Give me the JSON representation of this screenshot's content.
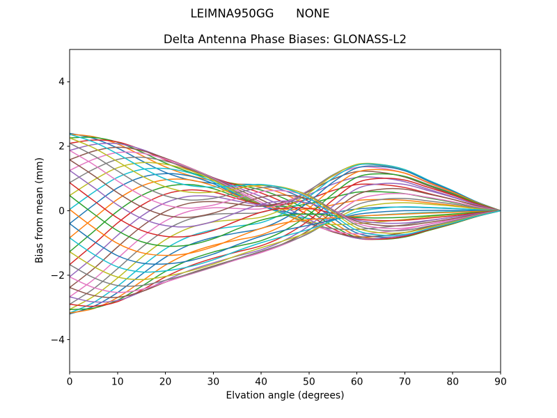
{
  "chart_data": {
    "type": "line",
    "suptitle": "LEIMNA950GG      NONE",
    "title": "Delta Antenna Phase Biases: GLONASS-L2",
    "xlabel": "Elvation angle (degrees)",
    "ylabel": "Bias from mean (mm)",
    "xlim": [
      0,
      90
    ],
    "ylim": [
      -5,
      5
    ],
    "xticks": [
      0,
      10,
      20,
      30,
      40,
      50,
      60,
      70,
      80,
      90
    ],
    "yticks": [
      -4,
      -2,
      0,
      2,
      4
    ],
    "grid": false,
    "legend": "none",
    "background": "#ffffff",
    "axis_color": "#000000",
    "palette": [
      "#1f77b4",
      "#ff7f0e",
      "#2ca02c",
      "#d62728",
      "#9467bd",
      "#8c564b",
      "#e377c2",
      "#7f7f7f",
      "#bcbd22",
      "#17becf"
    ],
    "x": [
      0,
      5,
      10,
      15,
      20,
      25,
      30,
      35,
      40,
      45,
      50,
      55,
      60,
      65,
      70,
      75,
      80,
      85,
      90
    ],
    "basis": {
      "p": [
        1.0,
        0.93,
        0.8,
        0.63,
        0.47,
        0.36,
        0.3,
        0.27,
        0.24,
        0.15,
        0.0,
        -0.2,
        -0.36,
        -0.39,
        -0.36,
        -0.27,
        -0.18,
        -0.08,
        0.0
      ],
      "q": [
        0.0,
        0.4,
        0.75,
        0.95,
        1.0,
        0.94,
        0.78,
        0.55,
        0.34,
        0.2,
        0.12,
        0.08,
        0.06,
        0.05,
        0.04,
        0.03,
        0.02,
        0.01,
        0.0
      ],
      "r": [
        0.0,
        0.04,
        0.08,
        0.14,
        0.22,
        0.33,
        0.47,
        0.63,
        0.78,
        0.92,
        1.0,
        0.88,
        0.62,
        0.44,
        0.31,
        0.2,
        0.12,
        0.05,
        0.0
      ]
    },
    "series_rule": "y[k] = a*p[k] + b*q[k] + c*r[k] (mm); all curves equal 0 at 90 degrees",
    "series": [
      {
        "a": 2.4,
        "b": 0.0,
        "c": 0.28
      },
      {
        "a": 2.37,
        "b": 0.22,
        "c": 0.11
      },
      {
        "a": 2.26,
        "b": 0.43,
        "c": -0.06
      },
      {
        "a": 2.09,
        "b": 0.64,
        "c": -0.22
      },
      {
        "a": 1.87,
        "b": 0.82,
        "c": -0.37
      },
      {
        "a": 1.58,
        "b": 0.99,
        "c": -0.48
      },
      {
        "a": 1.25,
        "b": 1.13,
        "c": -0.54
      },
      {
        "a": 0.87,
        "b": 1.25,
        "c": -0.55
      },
      {
        "a": 0.47,
        "b": 1.33,
        "c": -0.5
      },
      {
        "a": 0.04,
        "b": 1.38,
        "c": -0.41
      },
      {
        "a": -0.4,
        "b": 1.4,
        "c": -0.28
      },
      {
        "a": -0.84,
        "b": 1.38,
        "c": -0.11
      },
      {
        "a": -1.27,
        "b": 1.33,
        "c": 0.06
      },
      {
        "a": -1.67,
        "b": 1.25,
        "c": 0.22
      },
      {
        "a": -2.05,
        "b": 1.13,
        "c": 0.37
      },
      {
        "a": -2.38,
        "b": 0.99,
        "c": 0.48
      },
      {
        "a": -2.67,
        "b": 0.82,
        "c": 0.54
      },
      {
        "a": -2.9,
        "b": 0.64,
        "c": 0.55
      },
      {
        "a": -3.06,
        "b": 0.43,
        "c": 0.5
      },
      {
        "a": -3.17,
        "b": 0.22,
        "c": 0.41
      },
      {
        "a": -3.2,
        "b": 0.0,
        "c": 0.28
      },
      {
        "a": -3.17,
        "b": -0.22,
        "c": 0.11
      },
      {
        "a": -3.06,
        "b": -0.43,
        "c": -0.06
      },
      {
        "a": -2.9,
        "b": -0.64,
        "c": -0.22
      },
      {
        "a": -2.67,
        "b": -0.82,
        "c": -0.37
      },
      {
        "a": -2.38,
        "b": -0.99,
        "c": -0.48
      },
      {
        "a": -2.05,
        "b": -1.13,
        "c": -0.54
      },
      {
        "a": -1.67,
        "b": -1.25,
        "c": -0.55
      },
      {
        "a": -1.27,
        "b": -1.33,
        "c": -0.5
      },
      {
        "a": -0.84,
        "b": -1.38,
        "c": -0.41
      },
      {
        "a": -0.4,
        "b": -1.4,
        "c": -0.28
      },
      {
        "a": 0.04,
        "b": -1.38,
        "c": -0.11
      },
      {
        "a": 0.47,
        "b": -1.33,
        "c": 0.06
      },
      {
        "a": 0.87,
        "b": -1.25,
        "c": 0.22
      },
      {
        "a": 1.25,
        "b": -1.13,
        "c": 0.37
      },
      {
        "a": 1.58,
        "b": -0.99,
        "c": 0.48
      },
      {
        "a": 1.87,
        "b": -0.82,
        "c": 0.54
      },
      {
        "a": 2.09,
        "b": -0.64,
        "c": 0.55
      },
      {
        "a": 2.26,
        "b": -0.43,
        "c": 0.5
      },
      {
        "a": 2.37,
        "b": -0.22,
        "c": 0.41
      }
    ]
  }
}
